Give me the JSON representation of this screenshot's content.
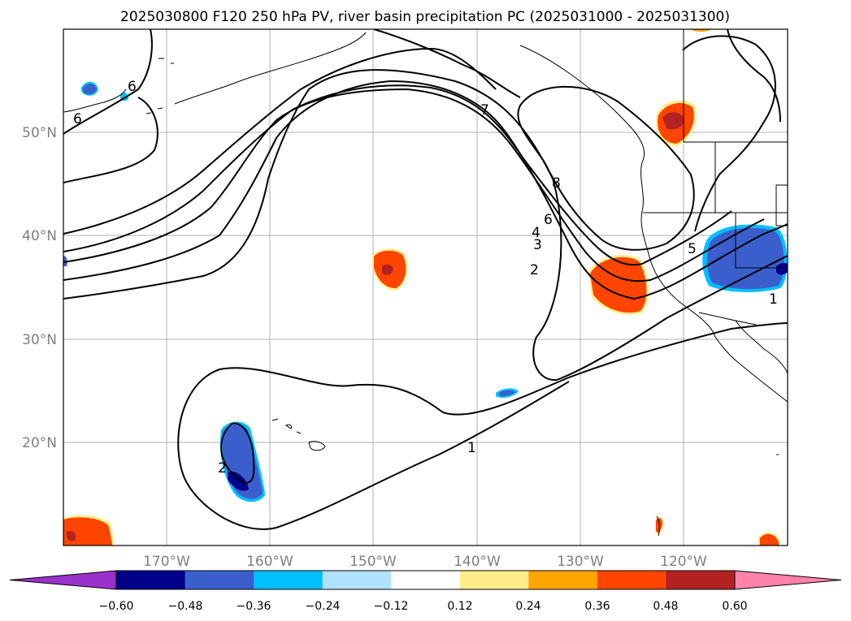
{
  "title": "2025030800 F120 250 hPa PV, river basin precipitation PC (2025031000 - 2025031300)",
  "map": {
    "lat_labels": [
      "50°N",
      "40°N",
      "30°N",
      "20°N"
    ],
    "lon_labels": [
      "170°W",
      "160°W",
      "150°W",
      "140°W",
      "130°W",
      "120°W"
    ],
    "contour_labels": [
      "6",
      "6",
      "7",
      "8",
      "6",
      "4",
      "3",
      "2",
      "1",
      "2",
      "5",
      "1"
    ],
    "contour_color": "#000000"
  },
  "colorbar": {
    "ticks": [
      "−0.60",
      "−0.48",
      "−0.36",
      "−0.24",
      "−0.12",
      "0.12",
      "0.24",
      "0.36",
      "0.48",
      "0.60"
    ],
    "colors": [
      "#9932cc",
      "#00008b",
      "#3a5fcd",
      "#00bfff",
      "#b0e2ff",
      "#ffffff",
      "#ffec8b",
      "#ffa500",
      "#ff4500",
      "#b22222",
      "#ff82ab"
    ]
  }
}
